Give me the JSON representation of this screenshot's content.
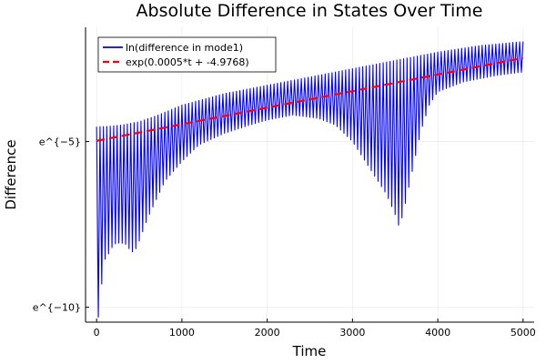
{
  "chart_data": {
    "type": "line",
    "title": "Absolute Difference in States Over Time",
    "xlabel": "Time",
    "ylabel": "Difference",
    "xlim": [
      -130,
      5130
    ],
    "ylim": [
      -10.45,
      -1.55
    ],
    "x_ticks": [
      {
        "value": 0,
        "label": "0"
      },
      {
        "value": 1000,
        "label": "1000"
      },
      {
        "value": 2000,
        "label": "2000"
      },
      {
        "value": 3000,
        "label": "3000"
      },
      {
        "value": 4000,
        "label": "4000"
      },
      {
        "value": 5000,
        "label": "5000"
      }
    ],
    "y_ticks": [
      {
        "value": -5,
        "label": "e^{−5}"
      },
      {
        "value": -10,
        "label": "e^{−10}"
      }
    ],
    "grid": true,
    "legend_position": "top-left",
    "series": [
      {
        "name": "ln(difference in mode1)",
        "color": "#0000ff",
        "style": "solid",
        "oscillation_period": 40,
        "upper_envelope": [
          [
            0,
            -4.55
          ],
          [
            100,
            -4.55
          ],
          [
            300,
            -4.5
          ],
          [
            500,
            -4.4
          ],
          [
            700,
            -4.22
          ],
          [
            1000,
            -3.9
          ],
          [
            1500,
            -3.55
          ],
          [
            2000,
            -3.3
          ],
          [
            2500,
            -3.05
          ],
          [
            3000,
            -2.8
          ],
          [
            3500,
            -2.55
          ],
          [
            4000,
            -2.3
          ],
          [
            4500,
            -2.1
          ],
          [
            5000,
            -1.98
          ]
        ],
        "lower_envelope": [
          [
            0,
            -10.3
          ],
          [
            30,
            -10.3
          ],
          [
            60,
            -9.3
          ],
          [
            100,
            -8.55
          ],
          [
            150,
            -8.35
          ],
          [
            200,
            -8.1
          ],
          [
            280,
            -8.05
          ],
          [
            340,
            -8.1
          ],
          [
            400,
            -8.3
          ],
          [
            440,
            -8.35
          ],
          [
            500,
            -8.0
          ],
          [
            600,
            -7.3
          ],
          [
            800,
            -6.2
          ],
          [
            1000,
            -5.6
          ],
          [
            1200,
            -5.1
          ],
          [
            1500,
            -4.75
          ],
          [
            1800,
            -4.5
          ],
          [
            2000,
            -4.35
          ],
          [
            2300,
            -4.2
          ],
          [
            2600,
            -4.3
          ],
          [
            2800,
            -4.5
          ],
          [
            3000,
            -5.0
          ],
          [
            3200,
            -5.8
          ],
          [
            3400,
            -6.6
          ],
          [
            3500,
            -7.2
          ],
          [
            3550,
            -7.6
          ],
          [
            3600,
            -7.1
          ],
          [
            3700,
            -5.9
          ],
          [
            3800,
            -4.7
          ],
          [
            3900,
            -3.9
          ],
          [
            4000,
            -3.5
          ],
          [
            4300,
            -3.2
          ],
          [
            4700,
            -3.0
          ],
          [
            5000,
            -2.9
          ]
        ]
      },
      {
        "name": "exp(0.0005*t + -4.9768)",
        "color": "#ff0000",
        "style": "dashed",
        "slope": 0.0005,
        "intercept": -4.9768
      }
    ]
  }
}
